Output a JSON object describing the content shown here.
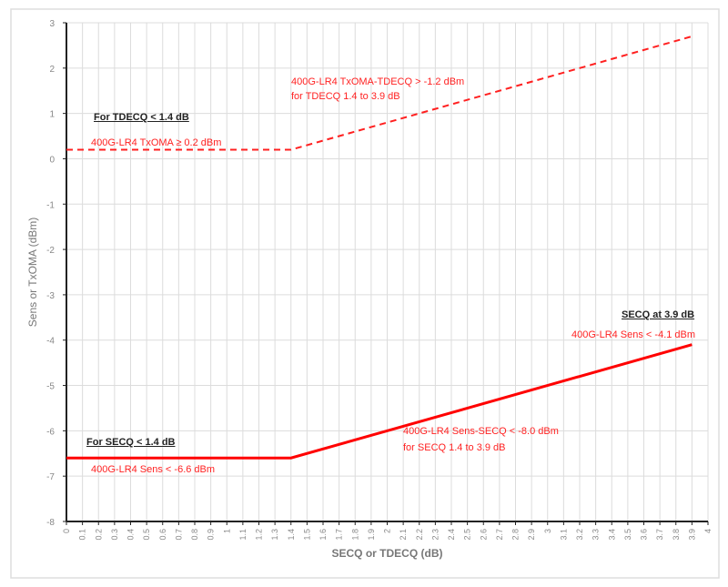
{
  "chart_data": {
    "type": "line",
    "xlabel": "SECQ or TDECQ (dB)",
    "ylabel": "Sens or TxOMA (dBm)",
    "xlim": [
      0,
      4
    ],
    "ylim": [
      -8,
      3
    ],
    "x_ticks": [
      "0",
      "0.1",
      "0.2",
      "0.3",
      "0.4",
      "0.5",
      "0.6",
      "0.7",
      "0.8",
      "0.9",
      "1",
      "1.1",
      "1.2",
      "1.3",
      "1.4",
      "1.5",
      "1.6",
      "1.7",
      "1.8",
      "1.9",
      "2",
      "2.1",
      "2.2",
      "2.3",
      "2.4",
      "2.5",
      "2.6",
      "2.7",
      "2.8",
      "2.9",
      "3",
      "3.1",
      "3.2",
      "3.3",
      "3.4",
      "3.5",
      "3.6",
      "3.7",
      "3.8",
      "3.9",
      "4"
    ],
    "y_ticks": [
      "3",
      "2",
      "1",
      "0",
      "-1",
      "-2",
      "-3",
      "-4",
      "-5",
      "-6",
      "-7",
      "-8"
    ],
    "grid": true,
    "series": [
      {
        "style": "dashed",
        "color": "#ff2020",
        "x": [
          0,
          1.4,
          3.9
        ],
        "y": [
          0.2,
          0.2,
          2.7
        ]
      },
      {
        "style": "solid",
        "color": "#ff0000",
        "x": [
          0,
          1.4,
          3.9
        ],
        "y": [
          -6.6,
          -6.6,
          -4.1
        ]
      }
    ],
    "annotations": {
      "tdecq_header": "For TDECQ < 1.4 dB",
      "txoma_flat": "400G-LR4 TxOMA ≥ 0.2 dBm",
      "txoma_slope_1": "400G-LR4 TxOMA-TDECQ > -1.2 dBm",
      "txoma_slope_2": "for TDECQ 1.4 to 3.9 dB",
      "secq39_header": "SECQ  at 3.9 dB",
      "sens_end": "400G-LR4 Sens < -4.1 dBm",
      "sens_slope_1": "400G-LR4 Sens-SECQ < -8.0 dBm",
      "sens_slope_2": "for SECQ 1.4 to 3.9 dB",
      "secq_header": "For SECQ < 1.4 dB",
      "sens_flat": "400G-LR4 Sens < -6.6 dBm"
    }
  }
}
